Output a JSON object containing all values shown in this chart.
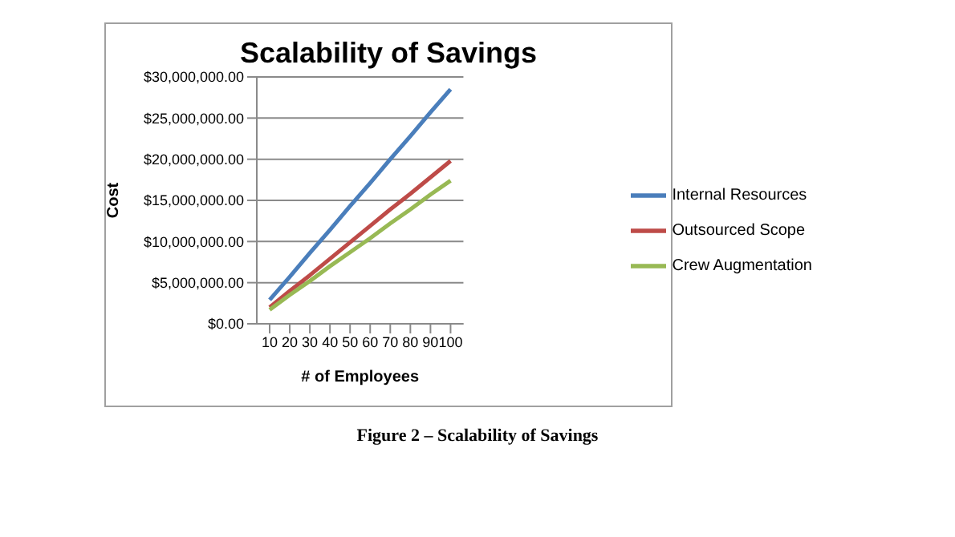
{
  "chart_data": {
    "type": "line",
    "title": "Scalability of Savings",
    "xlabel": "# of Employees",
    "ylabel": "Cost",
    "categories": [
      "10",
      "20",
      "30",
      "40",
      "50",
      "60",
      "70",
      "80",
      "90",
      "100"
    ],
    "series": [
      {
        "name": "Internal Resources",
        "color": "#4a7ebb",
        "values": [
          2900000,
          5700000,
          8600000,
          11400000,
          14300000,
          17100000,
          20000000,
          22800000,
          25700000,
          28500000
        ]
      },
      {
        "name": "Outsourced Scope",
        "color": "#be4b48",
        "values": [
          2000000,
          4000000,
          5900000,
          7900000,
          9900000,
          11900000,
          13900000,
          15800000,
          17800000,
          19800000
        ]
      },
      {
        "name": "Crew Augmentation",
        "color": "#98b954",
        "values": [
          1700000,
          3500000,
          5200000,
          7000000,
          8700000,
          10400000,
          12200000,
          13900000,
          15700000,
          17400000
        ]
      }
    ],
    "ylim": [
      0,
      30000000
    ],
    "yticks": [
      {
        "value": 0,
        "label": "$0.00"
      },
      {
        "value": 5000000,
        "label": "$5,000,000.00"
      },
      {
        "value": 10000000,
        "label": "$10,000,000.00"
      },
      {
        "value": 15000000,
        "label": "$15,000,000.00"
      },
      {
        "value": 20000000,
        "label": "$20,000,000.00"
      },
      {
        "value": 25000000,
        "label": "$25,000,000.00"
      },
      {
        "value": 30000000,
        "label": "$30,000,000.00"
      }
    ],
    "grid": "y",
    "legend": "right",
    "marker": "none",
    "line_style": "solid",
    "annotations": [
      "Figure 2 – Scalability of Savings"
    ]
  }
}
